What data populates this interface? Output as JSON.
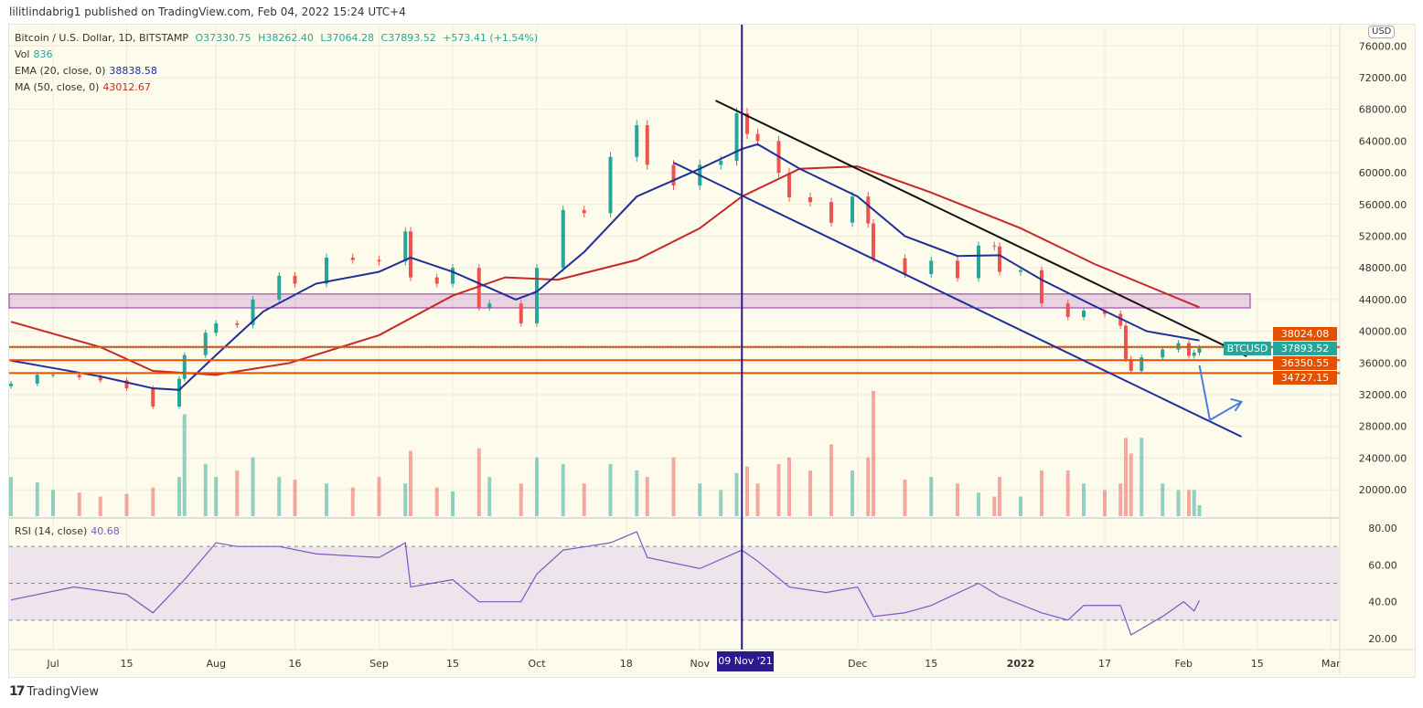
{
  "header": {
    "published": "lilitlindabrig1 published on TradingView.com, Feb 04, 2022 15:24 UTC+4"
  },
  "legend": {
    "symbol": "Bitcoin / U.S. Dollar, 1D, BITSTAMP",
    "open": "O37330.75",
    "high": "H38262.40",
    "low": "L37064.28",
    "close": "C37893.52",
    "change": "+573.41 (+1.54%)",
    "vol_label": "Vol",
    "vol_value": "836",
    "ema_label": "EMA (20, close, 0)",
    "ema_value": "38838.58",
    "ma_label": "MA (50, close, 0)",
    "ma_value": "43012.67",
    "rsi_label": "RSI (14, close)",
    "rsi_value": "40.68"
  },
  "price_axis": {
    "currency": "USD",
    "ticks": [
      "76000.00",
      "72000.00",
      "68000.00",
      "64000.00",
      "60000.00",
      "56000.00",
      "52000.00",
      "48000.00",
      "44000.00",
      "40000.00",
      "36000.00",
      "32000.00",
      "28000.00",
      "24000.00",
      "20000.00"
    ]
  },
  "rsi_axis": {
    "ticks": [
      "80.00",
      "60.00",
      "40.00",
      "20.00"
    ]
  },
  "time_axis": {
    "ticks": [
      {
        "label": "Jul",
        "date": "2021-07-01"
      },
      {
        "label": "15",
        "date": "2021-07-15"
      },
      {
        "label": "Aug",
        "date": "2021-08-01"
      },
      {
        "label": "16",
        "date": "2021-08-16"
      },
      {
        "label": "Sep",
        "date": "2021-09-01"
      },
      {
        "label": "15",
        "date": "2021-09-15"
      },
      {
        "label": "Oct",
        "date": "2021-10-01"
      },
      {
        "label": "18",
        "date": "2021-10-18"
      },
      {
        "label": "Nov",
        "date": "2021-11-01"
      },
      {
        "label": "Dec",
        "date": "2021-12-01"
      },
      {
        "label": "15",
        "date": "2021-12-15"
      },
      {
        "label": "2022",
        "date": "2022-01-01"
      },
      {
        "label": "17",
        "date": "2022-01-17"
      },
      {
        "label": "Feb",
        "date": "2022-02-01"
      },
      {
        "label": "15",
        "date": "2022-02-15"
      },
      {
        "label": "Mar",
        "date": "2022-03-01"
      }
    ],
    "crosshair_label": "09 Nov '21"
  },
  "price_labels": {
    "symbol": "BTCUSD",
    "last": "37893.52",
    "levels": [
      "38024.08",
      "36350.55",
      "34727.15"
    ]
  },
  "footer": {
    "brand": "TradingView"
  },
  "colors": {
    "up": "#26a69a",
    "down": "#ef5350",
    "ema": "#1e2f9a",
    "ma": "#c62828",
    "level": "#e65100",
    "zone": "#9c27b0",
    "rsi": "#7e57c2",
    "crosshair": "#2a1a8e"
  },
  "chart_data": {
    "type": "candlestick",
    "ylim": [
      18000,
      78000
    ],
    "closes": [
      [
        "2021-06-23",
        33400,
        3000
      ],
      [
        "2021-06-28",
        34500,
        2600
      ],
      [
        "2021-07-01",
        34500,
        2000
      ],
      [
        "2021-07-06",
        34200,
        1800
      ],
      [
        "2021-07-10",
        33800,
        1500
      ],
      [
        "2021-07-15",
        32800,
        1700
      ],
      [
        "2021-07-20",
        30500,
        2200
      ],
      [
        "2021-07-25",
        34000,
        3000
      ],
      [
        "2021-07-26",
        37000,
        7800
      ],
      [
        "2021-07-30",
        39800,
        4000
      ],
      [
        "2021-08-01",
        41000,
        3000
      ],
      [
        "2021-08-05",
        40800,
        3500
      ],
      [
        "2021-08-08",
        44000,
        4500
      ],
      [
        "2021-08-13",
        47000,
        3000
      ],
      [
        "2021-08-16",
        46000,
        2800
      ],
      [
        "2021-08-22",
        49300,
        2500
      ],
      [
        "2021-08-27",
        49000,
        2200
      ],
      [
        "2021-09-01",
        48800,
        3000
      ],
      [
        "2021-09-06",
        52600,
        2500
      ],
      [
        "2021-09-07",
        46800,
        5000
      ],
      [
        "2021-09-12",
        46000,
        2200
      ],
      [
        "2021-09-15",
        48000,
        1900
      ],
      [
        "2021-09-20",
        43000,
        5200
      ],
      [
        "2021-09-22",
        43500,
        3000
      ],
      [
        "2021-09-28",
        41000,
        2500
      ],
      [
        "2021-10-01",
        48000,
        4500
      ],
      [
        "2021-10-06",
        55300,
        4000
      ],
      [
        "2021-10-10",
        54900,
        2500
      ],
      [
        "2021-10-15",
        62000,
        4000
      ],
      [
        "2021-10-20",
        66000,
        3500
      ],
      [
        "2021-10-22",
        61000,
        3000
      ],
      [
        "2021-10-27",
        58400,
        4500
      ],
      [
        "2021-11-01",
        61000,
        2500
      ],
      [
        "2021-11-05",
        61500,
        2000
      ],
      [
        "2021-11-08",
        67500,
        3300
      ],
      [
        "2021-11-10",
        64900,
        3800
      ],
      [
        "2021-11-12",
        64000,
        2500
      ],
      [
        "2021-11-16",
        60000,
        4000
      ],
      [
        "2021-11-18",
        56900,
        4500
      ],
      [
        "2021-11-22",
        56300,
        3500
      ],
      [
        "2021-11-26",
        53700,
        5500
      ],
      [
        "2021-11-30",
        57000,
        3500
      ],
      [
        "2021-12-03",
        53600,
        4500
      ],
      [
        "2021-12-04",
        49200,
        9600
      ],
      [
        "2021-12-10",
        47200,
        2800
      ],
      [
        "2021-12-15",
        48900,
        3000
      ],
      [
        "2021-12-20",
        46700,
        2500
      ],
      [
        "2021-12-24",
        50800,
        1800
      ],
      [
        "2021-12-27",
        50700,
        1500
      ],
      [
        "2021-12-28",
        47500,
        3000
      ],
      [
        "2022-01-01",
        47700,
        1500
      ],
      [
        "2022-01-05",
        43500,
        3500
      ],
      [
        "2022-01-10",
        41800,
        3500
      ],
      [
        "2022-01-13",
        42600,
        2500
      ],
      [
        "2022-01-17",
        42200,
        2000
      ],
      [
        "2022-01-20",
        40700,
        2500
      ],
      [
        "2022-01-21",
        36500,
        6000
      ],
      [
        "2022-01-22",
        35000,
        4800
      ],
      [
        "2022-01-24",
        36700,
        6000
      ],
      [
        "2022-01-28",
        37700,
        2500
      ],
      [
        "2022-01-31",
        38500,
        2000
      ],
      [
        "2022-02-02",
        36900,
        2000
      ],
      [
        "2022-02-03",
        37300,
        2000
      ],
      [
        "2022-02-04",
        37893.52,
        836
      ]
    ],
    "ema20": [
      [
        "2021-06-23",
        36300
      ],
      [
        "2021-07-10",
        34300
      ],
      [
        "2021-07-20",
        32800
      ],
      [
        "2021-07-25",
        32600
      ],
      [
        "2021-08-01",
        37000
      ],
      [
        "2021-08-10",
        42500
      ],
      [
        "2021-08-20",
        46000
      ],
      [
        "2021-09-01",
        47500
      ],
      [
        "2021-09-07",
        49300
      ],
      [
        "2021-09-15",
        47500
      ],
      [
        "2021-09-27",
        44000
      ],
      [
        "2021-10-01",
        45000
      ],
      [
        "2021-10-10",
        50000
      ],
      [
        "2021-10-20",
        57000
      ],
      [
        "2021-11-01",
        60500
      ],
      [
        "2021-11-09",
        63000
      ],
      [
        "2021-11-12",
        63600
      ],
      [
        "2021-11-20",
        60500
      ],
      [
        "2021-12-01",
        57000
      ],
      [
        "2021-12-10",
        52000
      ],
      [
        "2021-12-20",
        49500
      ],
      [
        "2021-12-28",
        49600
      ],
      [
        "2022-01-05",
        46500
      ],
      [
        "2022-01-15",
        43200
      ],
      [
        "2022-01-25",
        40000
      ],
      [
        "2022-02-04",
        38838.58
      ]
    ],
    "ma50": [
      [
        "2021-06-23",
        41200
      ],
      [
        "2021-07-10",
        38000
      ],
      [
        "2021-07-20",
        35000
      ],
      [
        "2021-08-01",
        34500
      ],
      [
        "2021-08-15",
        36000
      ],
      [
        "2021-09-01",
        39500
      ],
      [
        "2021-09-15",
        44500
      ],
      [
        "2021-09-25",
        46800
      ],
      [
        "2021-10-05",
        46500
      ],
      [
        "2021-10-20",
        49000
      ],
      [
        "2021-11-01",
        53000
      ],
      [
        "2021-11-09",
        57000
      ],
      [
        "2021-11-20",
        60500
      ],
      [
        "2021-12-01",
        60800
      ],
      [
        "2021-12-15",
        57500
      ],
      [
        "2022-01-01",
        53000
      ],
      [
        "2022-01-15",
        48500
      ],
      [
        "2022-02-04",
        43012.67
      ]
    ],
    "rsi": [
      [
        "2021-06-23",
        41
      ],
      [
        "2021-07-05",
        48
      ],
      [
        "2021-07-15",
        44
      ],
      [
        "2021-07-20",
        34
      ],
      [
        "2021-07-26",
        52
      ],
      [
        "2021-08-01",
        72
      ],
      [
        "2021-08-05",
        70
      ],
      [
        "2021-08-13",
        70
      ],
      [
        "2021-08-20",
        66
      ],
      [
        "2021-09-01",
        64
      ],
      [
        "2021-09-06",
        72
      ],
      [
        "2021-09-07",
        48
      ],
      [
        "2021-09-15",
        52
      ],
      [
        "2021-09-20",
        40
      ],
      [
        "2021-09-28",
        40
      ],
      [
        "2021-10-01",
        55
      ],
      [
        "2021-10-06",
        68
      ],
      [
        "2021-10-15",
        72
      ],
      [
        "2021-10-20",
        78
      ],
      [
        "2021-10-22",
        64
      ],
      [
        "2021-11-01",
        58
      ],
      [
        "2021-11-09",
        68
      ],
      [
        "2021-11-12",
        62
      ],
      [
        "2021-11-18",
        48
      ],
      [
        "2021-11-25",
        45
      ],
      [
        "2021-12-01",
        48
      ],
      [
        "2021-12-04",
        32
      ],
      [
        "2021-12-10",
        34
      ],
      [
        "2021-12-15",
        38
      ],
      [
        "2021-12-24",
        50
      ],
      [
        "2021-12-28",
        43
      ],
      [
        "2022-01-05",
        34
      ],
      [
        "2022-01-10",
        30
      ],
      [
        "2022-01-13",
        38
      ],
      [
        "2022-01-20",
        38
      ],
      [
        "2022-01-22",
        22
      ],
      [
        "2022-01-28",
        32
      ],
      [
        "2022-02-01",
        40
      ],
      [
        "2022-02-03",
        35
      ],
      [
        "2022-02-04",
        40.68
      ]
    ],
    "rsi_bands": [
      70,
      50,
      30
    ],
    "levels": [
      38024.08,
      36350.55,
      34727.15
    ],
    "zone": [
      42950,
      44700
    ],
    "trendlines": [
      {
        "color": "#111111",
        "from": [
          "2021-11-04",
          69100
        ],
        "to": [
          "2022-02-13",
          36840
        ]
      },
      {
        "color": "#1e2f9a",
        "from": [
          "2021-10-27",
          61280
        ],
        "to": [
          "2022-02-12",
          26700
        ]
      }
    ],
    "arrow": [
      [
        "2022-02-04",
        35700
      ],
      [
        "2022-02-06",
        28800
      ],
      [
        "2022-02-12",
        31100
      ]
    ],
    "crosshair_date": "2021-11-09"
  }
}
